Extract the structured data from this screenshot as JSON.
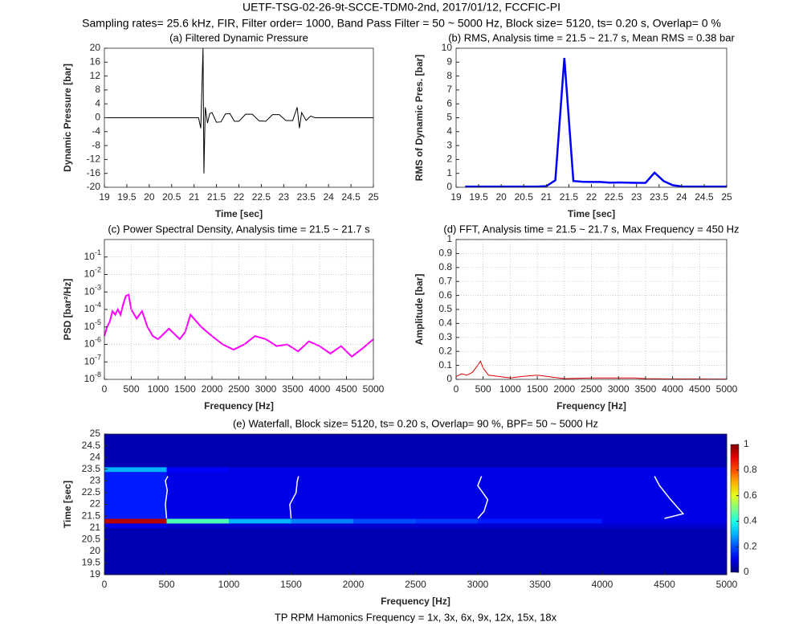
{
  "title": "UETF-TSG-02-26-9t-SCCE-TDM0-2nd, 2017/01/12, FCCFIC-PI",
  "subtitle": "Sampling rates= 25.6 kHz, FIR, Filter order= 1000, Band Pass Filter =  50 ~  5000 Hz, Block size= 5120, ts= 0.20 s, Overlap= 0 %",
  "chart_data": [
    {
      "type": "line",
      "title": "(a)  Filtered Dynamic Pressure",
      "xlabel": "Time [sec]",
      "ylabel": "Dynamic Pressure [bar]",
      "color": "#000000",
      "grid": false,
      "log": false,
      "x": [
        19,
        21.1,
        21.15,
        21.2,
        21.22,
        21.25,
        21.3,
        21.35,
        21.4,
        21.5,
        21.6,
        21.7,
        21.8,
        21.9,
        22.0,
        22.15,
        22.3,
        22.45,
        22.6,
        22.75,
        22.9,
        23.05,
        23.2,
        23.3,
        23.35,
        23.4,
        23.5,
        23.6,
        23.7,
        25
      ],
      "values": [
        0,
        0,
        -3,
        20,
        -16,
        3,
        -1.5,
        1.2,
        1.5,
        -1.3,
        -1.2,
        1.1,
        1.2,
        -1.0,
        -1,
        1.0,
        1,
        -0.9,
        -1,
        0.9,
        0.9,
        -0.8,
        -0.8,
        3,
        -3,
        1.5,
        -0.8,
        0.5,
        0,
        0
      ],
      "xlim": [
        19,
        25
      ],
      "xticks": [
        19,
        19.5,
        20,
        20.5,
        21,
        21.5,
        22,
        22.5,
        23,
        23.5,
        24,
        24.5,
        25
      ],
      "ylim": [
        -20,
        20
      ],
      "yticks": [
        -20,
        -16,
        -12,
        -8,
        -4,
        0,
        4,
        8,
        12,
        16,
        20
      ]
    },
    {
      "type": "line",
      "title": "(b)  RMS, Analysis time = 21.5 ~ 21.7  s, Mean RMS = 0.38  bar",
      "xlabel": "Time [sec]",
      "ylabel": "RMS of Dynamic Pres. [bar]",
      "color": "#0000ff",
      "grid": false,
      "log": false,
      "x": [
        19.2,
        19.4,
        19.6,
        19.8,
        20.0,
        20.2,
        20.4,
        20.6,
        20.8,
        21.0,
        21.2,
        21.4,
        21.6,
        21.8,
        22.0,
        22.2,
        22.4,
        22.6,
        22.8,
        23.0,
        23.2,
        23.4,
        23.6,
        23.8,
        24.0,
        24.2,
        24.4,
        24.6,
        24.8,
        25.0
      ],
      "values": [
        0.05,
        0.05,
        0.05,
        0.05,
        0.05,
        0.05,
        0.05,
        0.05,
        0.05,
        0.08,
        0.5,
        9.3,
        0.45,
        0.4,
        0.38,
        0.38,
        0.33,
        0.35,
        0.33,
        0.32,
        0.32,
        1.05,
        0.45,
        0.15,
        0.06,
        0.05,
        0.05,
        0.05,
        0.05,
        0.05
      ],
      "xlim": [
        19,
        25
      ],
      "xticks": [
        19,
        19.5,
        20,
        20.5,
        21,
        21.5,
        22,
        22.5,
        23,
        23.5,
        24,
        24.5,
        25
      ],
      "ylim": [
        0,
        10
      ],
      "yticks": [
        0,
        1,
        2,
        3,
        4,
        5,
        6,
        7,
        8,
        9,
        10
      ]
    },
    {
      "type": "line",
      "title": "(c)  Power Spectral Density, Analysis time = 21.5 ~ 21.7 s",
      "xlabel": "Frequency [Hz]",
      "ylabel": "PSD [bar²/Hz]",
      "color": "#ff00ff",
      "grid": true,
      "log": true,
      "x": [
        0,
        50,
        100,
        150,
        200,
        250,
        300,
        350,
        400,
        450,
        500,
        600,
        700,
        800,
        900,
        1000,
        1200,
        1400,
        1500,
        1600,
        1800,
        2000,
        2200,
        2400,
        2600,
        2800,
        3000,
        3200,
        3400,
        3600,
        3800,
        4000,
        4200,
        4400,
        4600,
        4800,
        5000
      ],
      "values": [
        3e-06,
        1e-05,
        2e-05,
        8e-05,
        5e-05,
        0.0001,
        5e-05,
        0.0002,
        0.0006,
        0.0007,
        0.0001,
        3e-05,
        8e-05,
        1e-05,
        3e-06,
        2e-06,
        8e-06,
        2e-06,
        5e-06,
        5e-05,
        1e-05,
        3e-06,
        1e-06,
        5e-07,
        1e-06,
        3e-06,
        2e-06,
        8e-07,
        1e-06,
        4e-07,
        1.5e-06,
        8e-07,
        3e-07,
        8e-07,
        2e-07,
        6e-07,
        2e-06
      ],
      "xlim": [
        0,
        5000
      ],
      "xticks": [
        0,
        500,
        1000,
        1500,
        2000,
        2500,
        3000,
        3500,
        4000,
        4500,
        5000
      ],
      "ylim": [
        1e-08,
        1
      ],
      "yticks": [
        {
          "value": 1e-08,
          "label": "10-8"
        },
        {
          "value": 1e-07,
          "label": "10-7"
        },
        {
          "value": 1e-06,
          "label": "10-6"
        },
        {
          "value": 1e-05,
          "label": "10-5"
        },
        {
          "value": 0.0001,
          "label": "10-4"
        },
        {
          "value": 0.001,
          "label": "10-3"
        },
        {
          "value": 0.01,
          "label": "10-2"
        },
        {
          "value": 0.1,
          "label": "10-1"
        }
      ]
    },
    {
      "type": "line",
      "title": "(d)  FFT, Analysis time = 21.5 ~ 21.7  s, Max Frequency = 450  Hz",
      "xlabel": "Frequency [Hz]",
      "ylabel": "Amplitude [bar]",
      "color": "#e00000",
      "grid": true,
      "log": false,
      "x": [
        0,
        100,
        200,
        300,
        400,
        450,
        500,
        600,
        800,
        1000,
        1200,
        1500,
        1800,
        2000,
        2500,
        3000,
        3300,
        3500,
        4000,
        4500,
        5000
      ],
      "values": [
        0.02,
        0.04,
        0.03,
        0.05,
        0.1,
        0.13,
        0.08,
        0.03,
        0.02,
        0.01,
        0.02,
        0.03,
        0.015,
        0.005,
        0.01,
        0.01,
        0.01,
        0.005,
        0.003,
        0.003,
        0.002
      ],
      "xlim": [
        0,
        5000
      ],
      "xticks": [
        0,
        500,
        1000,
        1500,
        2000,
        2500,
        3000,
        3500,
        4000,
        4500,
        5000
      ],
      "ylim": [
        0,
        1
      ],
      "yticks": [
        0,
        0.1,
        0.2,
        0.3,
        0.4,
        0.5,
        0.6,
        0.7,
        0.8,
        0.9,
        1
      ]
    },
    {
      "type": "heatmap",
      "title": "(e)  Waterfall, Block size=  5120, ts= 0.20 s, Overlap= 90 %, BPF=  50 ~  5000 Hz",
      "xlabel": "Frequency [Hz]",
      "ylabel": "Time [sec]",
      "note": "TP RPM Hamonics Frequency = 1x, 3x, 6x, 9x, 12x, 15x, 18x",
      "colormap": "jet",
      "x_bins": [
        0,
        500,
        1000,
        1500,
        2000,
        2500,
        3000,
        3500,
        4000,
        4500,
        5000
      ],
      "y_bins": [
        19,
        19.2,
        19.4,
        19.6,
        19.8,
        20,
        20.2,
        20.4,
        20.6,
        20.8,
        21,
        21.2,
        21.4,
        21.6,
        21.8,
        22,
        22.2,
        22.4,
        22.6,
        22.8,
        23,
        23.2,
        23.4,
        23.6,
        23.8,
        24,
        24.2,
        24.4,
        24.6,
        24.8,
        25
      ],
      "z": [
        [
          0.05,
          0.05,
          0.05,
          0.05,
          0.05,
          0.05,
          0.05,
          0.05,
          0.05,
          0.05
        ],
        [
          0.05,
          0.05,
          0.05,
          0.05,
          0.05,
          0.05,
          0.05,
          0.05,
          0.05,
          0.05
        ],
        [
          0.05,
          0.05,
          0.05,
          0.05,
          0.05,
          0.05,
          0.05,
          0.05,
          0.05,
          0.05
        ],
        [
          0.05,
          0.05,
          0.05,
          0.05,
          0.05,
          0.05,
          0.05,
          0.05,
          0.05,
          0.05
        ],
        [
          0.05,
          0.05,
          0.05,
          0.05,
          0.05,
          0.05,
          0.05,
          0.05,
          0.05,
          0.05
        ],
        [
          0.05,
          0.05,
          0.05,
          0.05,
          0.05,
          0.05,
          0.05,
          0.05,
          0.05,
          0.05
        ],
        [
          0.05,
          0.05,
          0.05,
          0.05,
          0.05,
          0.05,
          0.05,
          0.05,
          0.05,
          0.05
        ],
        [
          0.05,
          0.05,
          0.05,
          0.05,
          0.05,
          0.05,
          0.05,
          0.05,
          0.05,
          0.05
        ],
        [
          0.05,
          0.05,
          0.05,
          0.05,
          0.05,
          0.05,
          0.05,
          0.05,
          0.05,
          0.05
        ],
        [
          0.05,
          0.05,
          0.05,
          0.05,
          0.05,
          0.05,
          0.05,
          0.05,
          0.05,
          0.05
        ],
        [
          0.1,
          0.08,
          0.08,
          0.08,
          0.08,
          0.08,
          0.08,
          0.08,
          0.08,
          0.08
        ],
        [
          0.95,
          0.45,
          0.3,
          0.25,
          0.2,
          0.18,
          0.15,
          0.15,
          0.1,
          0.1
        ],
        [
          0.15,
          0.1,
          0.1,
          0.1,
          0.1,
          0.1,
          0.1,
          0.1,
          0.1,
          0.1
        ],
        [
          0.15,
          0.1,
          0.1,
          0.1,
          0.1,
          0.1,
          0.1,
          0.1,
          0.1,
          0.1
        ],
        [
          0.15,
          0.1,
          0.1,
          0.1,
          0.1,
          0.1,
          0.1,
          0.1,
          0.1,
          0.1
        ],
        [
          0.15,
          0.1,
          0.1,
          0.1,
          0.1,
          0.1,
          0.1,
          0.1,
          0.1,
          0.1
        ],
        [
          0.15,
          0.1,
          0.1,
          0.1,
          0.1,
          0.1,
          0.1,
          0.1,
          0.1,
          0.1
        ],
        [
          0.15,
          0.1,
          0.1,
          0.1,
          0.1,
          0.1,
          0.1,
          0.1,
          0.1,
          0.1
        ],
        [
          0.15,
          0.1,
          0.1,
          0.1,
          0.1,
          0.1,
          0.1,
          0.1,
          0.1,
          0.1
        ],
        [
          0.15,
          0.1,
          0.1,
          0.1,
          0.1,
          0.1,
          0.1,
          0.1,
          0.1,
          0.1
        ],
        [
          0.15,
          0.1,
          0.1,
          0.1,
          0.1,
          0.1,
          0.1,
          0.1,
          0.1,
          0.1
        ],
        [
          0.15,
          0.1,
          0.1,
          0.1,
          0.1,
          0.1,
          0.1,
          0.1,
          0.1,
          0.1
        ],
        [
          0.3,
          0.12,
          0.1,
          0.1,
          0.1,
          0.1,
          0.1,
          0.1,
          0.1,
          0.1
        ],
        [
          0.05,
          0.05,
          0.05,
          0.05,
          0.05,
          0.05,
          0.05,
          0.05,
          0.05,
          0.05
        ],
        [
          0.05,
          0.05,
          0.05,
          0.05,
          0.05,
          0.05,
          0.05,
          0.05,
          0.05,
          0.05
        ],
        [
          0.05,
          0.05,
          0.05,
          0.05,
          0.05,
          0.05,
          0.05,
          0.05,
          0.05,
          0.05
        ],
        [
          0.05,
          0.05,
          0.05,
          0.05,
          0.05,
          0.05,
          0.05,
          0.05,
          0.05,
          0.05
        ],
        [
          0.05,
          0.05,
          0.05,
          0.05,
          0.05,
          0.05,
          0.05,
          0.05,
          0.05,
          0.05
        ],
        [
          0.05,
          0.05,
          0.05,
          0.05,
          0.05,
          0.05,
          0.05,
          0.05,
          0.05,
          0.05
        ],
        [
          0.05,
          0.05,
          0.05,
          0.05,
          0.05,
          0.05,
          0.05,
          0.05,
          0.05,
          0.05
        ]
      ],
      "harmonics": [
        {
          "x": [
            500,
            490,
            505,
            490,
            510
          ],
          "y": [
            21.4,
            22,
            22.6,
            23,
            23.2
          ]
        },
        {
          "x": [
            1500,
            1490,
            1540,
            1550,
            1560
          ],
          "y": [
            21.4,
            22,
            22.5,
            23,
            23.2
          ]
        },
        {
          "x": [
            3000,
            3050,
            3080,
            3000,
            3030
          ],
          "y": [
            21.4,
            21.7,
            22.2,
            22.8,
            23.2
          ]
        },
        {
          "x": [
            4500,
            4650,
            4550,
            4460,
            4420
          ],
          "y": [
            21.4,
            21.6,
            22.2,
            22.8,
            23.2
          ]
        }
      ],
      "xlim": [
        0,
        5000
      ],
      "xticks": [
        0,
        500,
        1000,
        1500,
        2000,
        2500,
        3000,
        3500,
        4000,
        4500,
        5000
      ],
      "ylim": [
        19,
        25
      ],
      "yticks": [
        19,
        19.5,
        20,
        20.5,
        21,
        21.5,
        22,
        22.5,
        23,
        23.5,
        24,
        24.5,
        25
      ],
      "clim": [
        0,
        1
      ],
      "cticks": [
        0,
        0.2,
        0.4,
        0.6,
        0.8,
        1
      ]
    }
  ]
}
